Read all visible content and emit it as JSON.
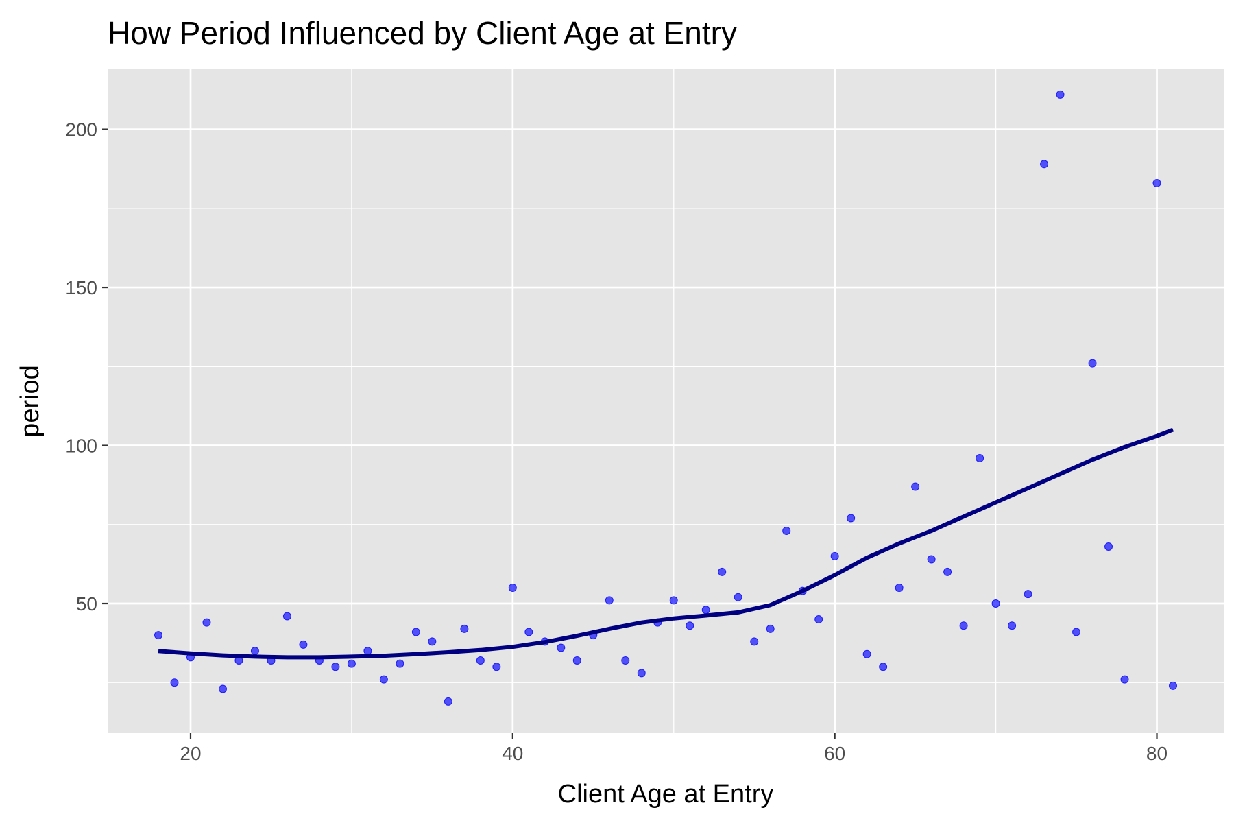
{
  "chart_data": {
    "type": "scatter",
    "title": "How Period Influenced by Client Age at Entry",
    "xlabel": "Client Age at Entry",
    "ylabel": "period",
    "xlim": [
      14.85,
      84.15
    ],
    "ylim": [
      9.0,
      219.0
    ],
    "x_ticks": [
      20,
      40,
      60,
      80
    ],
    "y_ticks": [
      50,
      100,
      150,
      200
    ],
    "x_tick_labels": [
      "20",
      "40",
      "60",
      "80"
    ],
    "y_tick_labels": [
      "50",
      "100",
      "150",
      "200"
    ],
    "grid": true,
    "legend": "none",
    "colors": {
      "panel_background": "#e5e5e5",
      "grid": "#ffffff",
      "points": "#0000ff",
      "smooth_line": "#000080"
    },
    "series": [
      {
        "kind": "points",
        "x": [
          18,
          19,
          20,
          21,
          22,
          23,
          24,
          25,
          26,
          27,
          28,
          29,
          30,
          31,
          32,
          33,
          34,
          35,
          36,
          37,
          38,
          39,
          40,
          41,
          42,
          43,
          44,
          45,
          46,
          47,
          48,
          49,
          50,
          51,
          52,
          53,
          54,
          55,
          56,
          57,
          58,
          59,
          60,
          61,
          62,
          63,
          64,
          65,
          66,
          67,
          68,
          69,
          70,
          71,
          72,
          73,
          74,
          75,
          76,
          77,
          78,
          80,
          81
        ],
        "y": [
          40,
          25,
          33,
          44,
          23,
          32,
          35,
          32,
          46,
          37,
          32,
          30,
          31,
          35,
          26,
          31,
          41,
          38,
          19,
          42,
          32,
          30,
          55,
          41,
          38,
          36,
          32,
          40,
          51,
          32,
          28,
          44,
          51,
          43,
          48,
          60,
          52,
          38,
          42,
          73,
          54,
          45,
          65,
          77,
          34,
          30,
          55,
          87,
          64,
          60,
          43,
          96,
          50,
          43,
          53,
          189,
          211,
          41,
          126,
          68,
          26,
          183,
          24
        ]
      },
      {
        "kind": "smooth",
        "x": [
          18,
          20,
          22,
          24,
          26,
          28,
          30,
          32,
          34,
          36,
          38,
          40,
          42,
          44,
          46,
          48,
          50,
          52,
          54,
          56,
          58,
          60,
          62,
          64,
          66,
          68,
          70,
          72,
          74,
          76,
          78,
          80,
          81
        ],
        "y": [
          35,
          34.2,
          33.6,
          33.2,
          33,
          33,
          33.2,
          33.5,
          34,
          34.6,
          35.3,
          36.3,
          37.8,
          39.8,
          42,
          44,
          45.3,
          46.2,
          47.2,
          49.5,
          54,
          59,
          64.5,
          69,
          73,
          77.5,
          82,
          86.5,
          91,
          95.5,
          99.5,
          103,
          105
        ]
      }
    ]
  }
}
